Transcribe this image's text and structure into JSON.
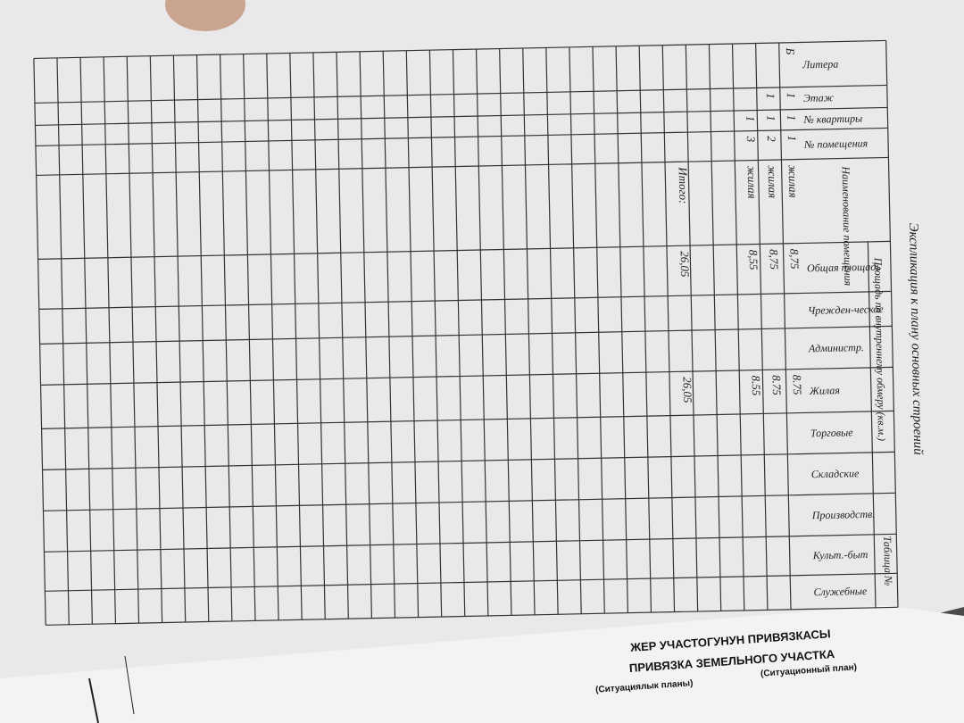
{
  "header": {
    "title": "Экспликация к плану основных строений",
    "table_label": "Таблица №"
  },
  "table": {
    "group_header": "Площадь по внутреннему обмеру (кв.м.)",
    "columns": [
      "Литера",
      "Этаж",
      "№ квартиры",
      "№ помещения",
      "Наименование помещения",
      "Общая площадь",
      "Чрежден-ческое",
      "Администр.",
      "Жилая",
      "Торговые",
      "Складские",
      "Производств.",
      "Культ.-быт",
      "Служебные"
    ],
    "rows": [
      {
        "litera": "Б",
        "floor": "1",
        "apartment": "1",
        "room": "1",
        "name": "жилая",
        "total": "8,75",
        "living": "8.75"
      },
      {
        "floor": "1",
        "apartment": "1",
        "room": "2",
        "name": "жилая",
        "total": "8,75",
        "living": "8.75"
      },
      {
        "apartment": "1",
        "room": "3",
        "name": "жилая",
        "total": "8,55",
        "living": "8.55"
      },
      {
        "name": "Итого:",
        "total": "26,05",
        "living": "26,05"
      }
    ]
  },
  "footer": {
    "line1": "ЖЕР УЧАСТОГУНУН ПРИВЯЗКАСЫ",
    "line2": "ПРИВЯЗКА ЗЕМЕЛЬНОГО УЧАСТКА",
    "left_note": "(Ситуациялык планы)",
    "right_note": "(Ситуационный план)"
  }
}
